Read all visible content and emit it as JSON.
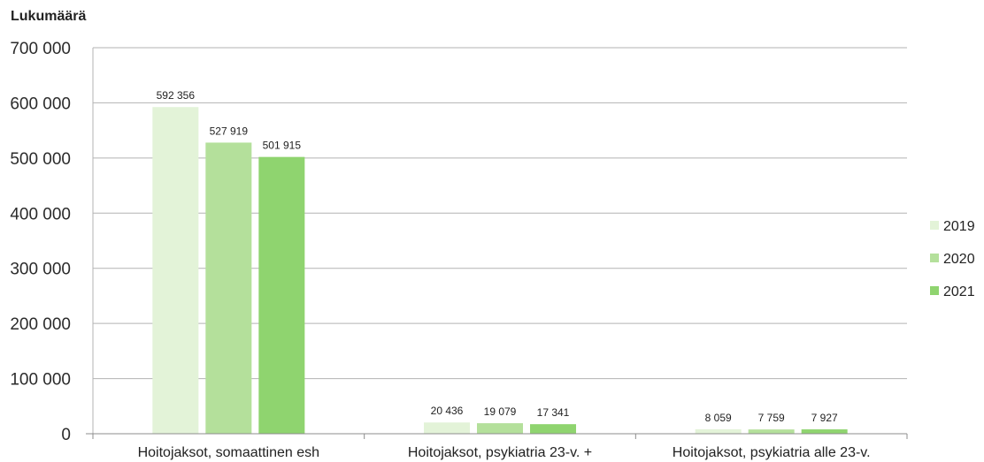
{
  "chart_data": {
    "type": "bar",
    "ylabel": "Lukumäärä",
    "ylim": [
      0,
      700000
    ],
    "yticks": [
      0,
      100000,
      200000,
      300000,
      400000,
      500000,
      600000,
      700000
    ],
    "ytick_labels": [
      "0",
      "100 000",
      "200 000",
      "300 000",
      "400 000",
      "500 000",
      "600 000",
      "700 000"
    ],
    "grid": true,
    "legend_position": "right",
    "categories": [
      "Hoitojaksot, somaattinen esh",
      "Hoitojaksot, psykiatria 23-v. +",
      "Hoitojaksot, psykiatria alle 23-v."
    ],
    "series": [
      {
        "name": "2019",
        "color": "#e3f3d8",
        "values": [
          592356,
          20436,
          8059
        ],
        "labels": [
          "592 356",
          "20 436",
          "8 059"
        ]
      },
      {
        "name": "2020",
        "color": "#b4e09b",
        "values": [
          527919,
          19079,
          7759
        ],
        "labels": [
          "527 919",
          "19 079",
          "7 759"
        ]
      },
      {
        "name": "2021",
        "color": "#8fd46f",
        "values": [
          501915,
          17341,
          7927
        ],
        "labels": [
          "501 915",
          "17 341",
          "7 927"
        ]
      }
    ]
  }
}
